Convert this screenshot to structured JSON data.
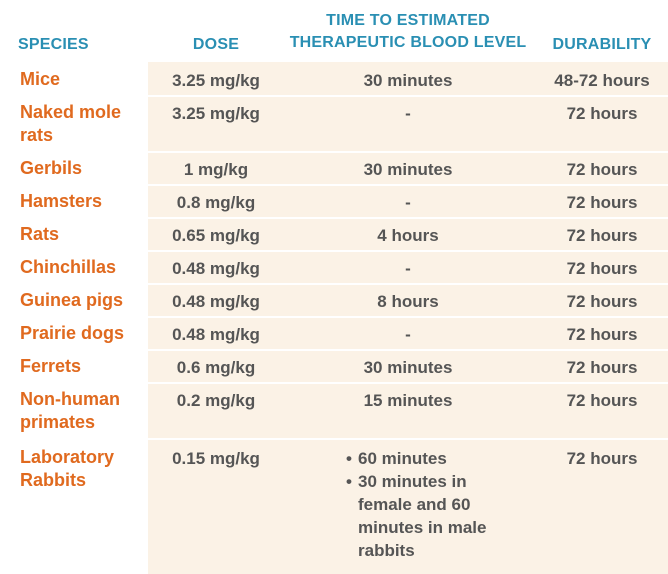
{
  "headers": {
    "species": "SPECIES",
    "dose": "DOSE",
    "time_line1": "TIME TO ESTIMATED",
    "time_line2": "THERAPEUTIC BLOOD LEVEL",
    "durability": "DURABILITY"
  },
  "rows": [
    {
      "species": "Mice",
      "dose": "3.25 mg/kg",
      "time": "30 minutes",
      "durability": "48-72 hours"
    },
    {
      "species": "Naked mole rats",
      "dose": "3.25 mg/kg",
      "time": "-",
      "durability": "72 hours"
    },
    {
      "species": "Gerbils",
      "dose": "1 mg/kg",
      "time": "30 minutes",
      "durability": "72 hours"
    },
    {
      "species": "Hamsters",
      "dose": "0.8 mg/kg",
      "time": "-",
      "durability": "72 hours"
    },
    {
      "species": "Rats",
      "dose": "0.65 mg/kg",
      "time": "4 hours",
      "durability": "72 hours"
    },
    {
      "species": "Chinchillas",
      "dose": "0.48 mg/kg",
      "time": "-",
      "durability": "72 hours"
    },
    {
      "species": "Guinea pigs",
      "dose": "0.48 mg/kg",
      "time": "8 hours",
      "durability": "72 hours"
    },
    {
      "species": "Prairie dogs",
      "dose": "0.48 mg/kg",
      "time": "-",
      "durability": "72 hours"
    },
    {
      "species": "Ferrets",
      "dose": "0.6 mg/kg",
      "time": "30 minutes",
      "durability": "72 hours"
    },
    {
      "species": "Non-human primates",
      "dose": "0.2 mg/kg",
      "time": "15 minutes",
      "durability": "72 hours"
    },
    {
      "species": "Laboratory Rabbits",
      "dose": "0.15 mg/kg",
      "time_list": [
        "60 minutes",
        "30 minutes in female and 60 minutes in male rabbits"
      ],
      "durability": "72 hours"
    }
  ],
  "colors": {
    "header": "#2a8fb3",
    "species": "#e06a1f",
    "text": "#555555",
    "shade": "#fbf2e6"
  }
}
